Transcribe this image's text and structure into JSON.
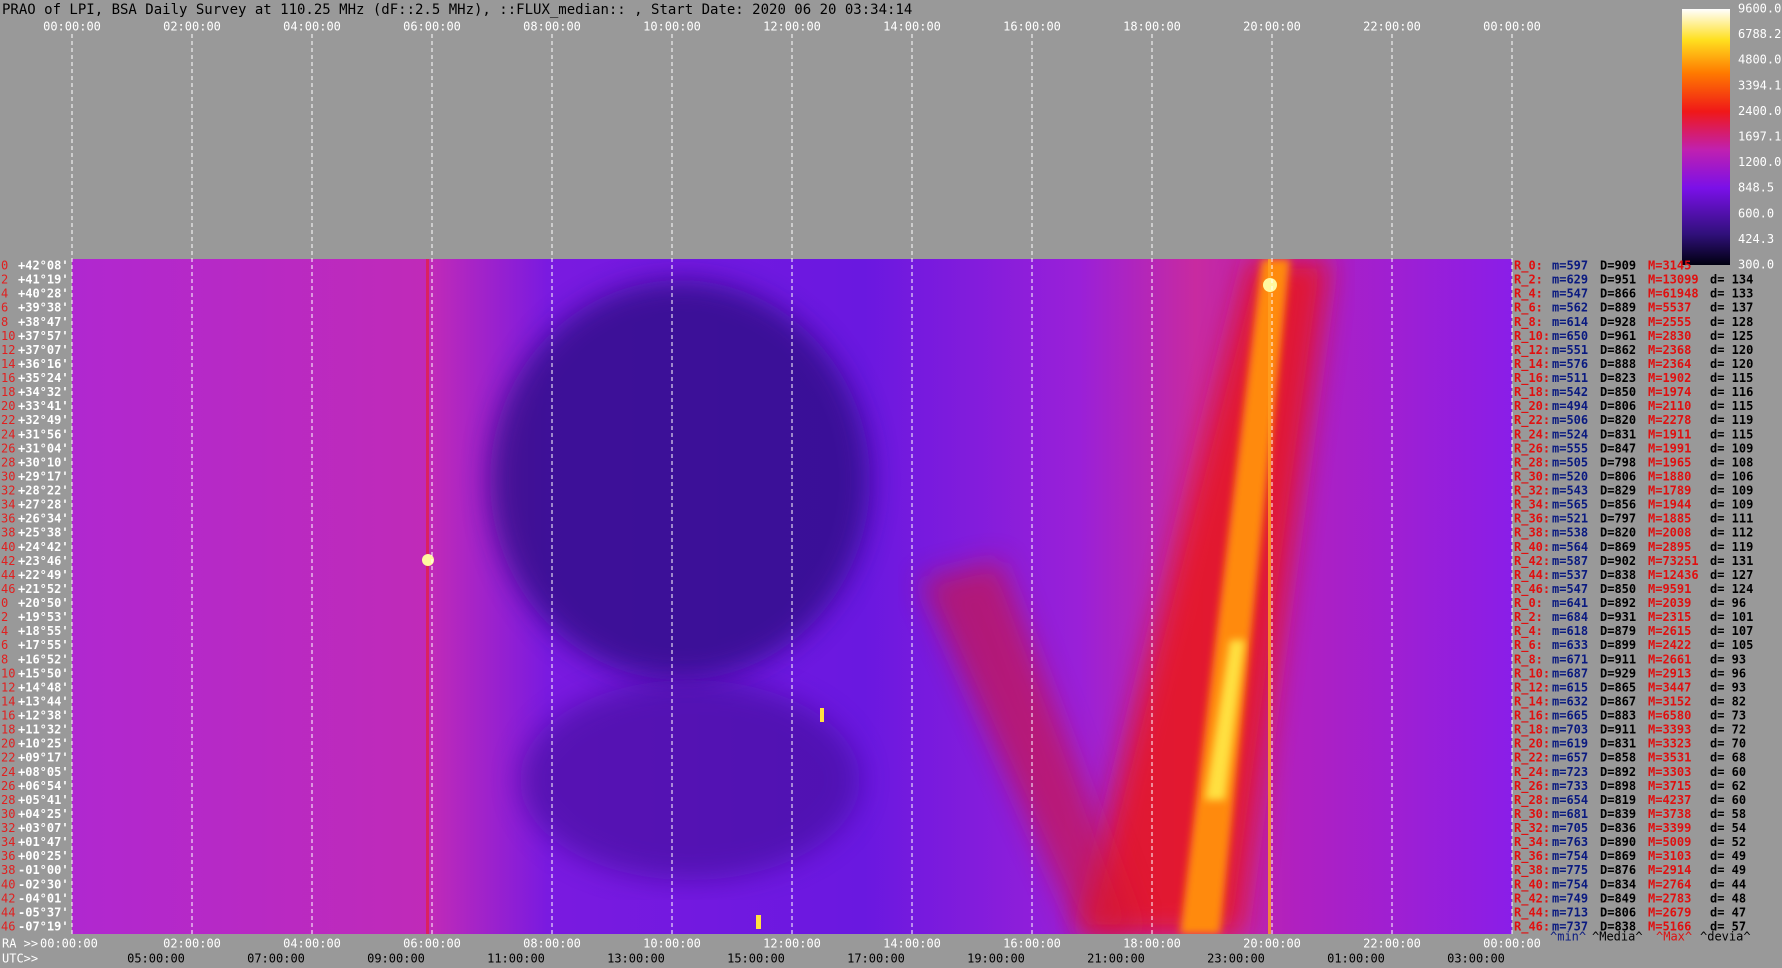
{
  "title": "PRAO of LPI, BSA Daily Survey at 110.25 MHz (dF::2.5 MHz), ::FLUX_median:: , Start Date: 2020 06 20 03:34:14",
  "top_axis": [
    "00:00:00",
    "02:00:00",
    "04:00:00",
    "06:00:00",
    "08:00:00",
    "10:00:00",
    "12:00:00",
    "14:00:00",
    "16:00:00",
    "18:00:00",
    "20:00:00",
    "22:00:00",
    "00:00:00"
  ],
  "ra_prefix": "RA >>",
  "bottom_ra": [
    "00:00:00",
    "02:00:00",
    "04:00:00",
    "06:00:00",
    "08:00:00",
    "10:00:00",
    "12:00:00",
    "14:00:00",
    "16:00:00",
    "18:00:00",
    "20:00:00",
    "22:00:00",
    "00:00:00"
  ],
  "utc_prefix": "UTC>>",
  "bottom_utc": [
    "05:00:00",
    "07:00:00",
    "09:00:00",
    "11:00:00",
    "13:00:00",
    "15:00:00",
    "17:00:00",
    "19:00:00",
    "21:00:00",
    "23:00:00",
    "01:00:00",
    "03:00:00"
  ],
  "colorbar": [
    "9600.0",
    "6788.2",
    "4800.0",
    "3394.1",
    "2400.0",
    "1697.1",
    "1200.0",
    "848.5",
    "600.0",
    "424.3",
    "300.0"
  ],
  "rows": [
    {
      "id": "0",
      "dec": "+42°08'"
    },
    {
      "id": "2",
      "dec": "+41°19'"
    },
    {
      "id": "4",
      "dec": "+40°28'"
    },
    {
      "id": "6",
      "dec": "+39°38'"
    },
    {
      "id": "8",
      "dec": "+38°47'"
    },
    {
      "id": "10",
      "dec": "+37°57'"
    },
    {
      "id": "12",
      "dec": "+37°07'"
    },
    {
      "id": "14",
      "dec": "+36°16'"
    },
    {
      "id": "16",
      "dec": "+35°24'"
    },
    {
      "id": "18",
      "dec": "+34°32'"
    },
    {
      "id": "20",
      "dec": "+33°41'"
    },
    {
      "id": "22",
      "dec": "+32°49'"
    },
    {
      "id": "24",
      "dec": "+31°56'"
    },
    {
      "id": "26",
      "dec": "+31°04'"
    },
    {
      "id": "28",
      "dec": "+30°10'"
    },
    {
      "id": "30",
      "dec": "+29°17'"
    },
    {
      "id": "32",
      "dec": "+28°22'"
    },
    {
      "id": "34",
      "dec": "+27°28'"
    },
    {
      "id": "36",
      "dec": "+26°34'"
    },
    {
      "id": "38",
      "dec": "+25°38'"
    },
    {
      "id": "40",
      "dec": "+24°42'"
    },
    {
      "id": "42",
      "dec": "+23°46'"
    },
    {
      "id": "44",
      "dec": "+22°49'"
    },
    {
      "id": "46",
      "dec": "+21°52'"
    },
    {
      "id": "0",
      "dec": "+20°50'"
    },
    {
      "id": "2",
      "dec": "+19°53'"
    },
    {
      "id": "4",
      "dec": "+18°55'"
    },
    {
      "id": "6",
      "dec": "+17°55'"
    },
    {
      "id": "8",
      "dec": "+16°52'"
    },
    {
      "id": "10",
      "dec": "+15°50'"
    },
    {
      "id": "12",
      "dec": "+14°48'"
    },
    {
      "id": "14",
      "dec": "+13°44'"
    },
    {
      "id": "16",
      "dec": "+12°38'"
    },
    {
      "id": "18",
      "dec": "+11°32'"
    },
    {
      "id": "20",
      "dec": "+10°25'"
    },
    {
      "id": "22",
      "dec": "+09°17'"
    },
    {
      "id": "24",
      "dec": "+08°05'"
    },
    {
      "id": "26",
      "dec": "+06°54'"
    },
    {
      "id": "28",
      "dec": "+05°41'"
    },
    {
      "id": "30",
      "dec": "+04°25'"
    },
    {
      "id": "32",
      "dec": "+03°07'"
    },
    {
      "id": "34",
      "dec": "+01°47'"
    },
    {
      "id": "36",
      "dec": "+00°25'"
    },
    {
      "id": "38",
      "dec": "-01°00'"
    },
    {
      "id": "40",
      "dec": "-02°30'"
    },
    {
      "id": "42",
      "dec": "-04°01'"
    },
    {
      "id": "44",
      "dec": "-05°37'"
    },
    {
      "id": "46",
      "dec": "-07°19'"
    }
  ],
  "stats": [
    {
      "label": "R_0:",
      "m": "m=597",
      "D": "D=909",
      "M": "M=3145"
    },
    {
      "label": "R_2:",
      "m": "m=629",
      "D": "D=951",
      "M": "M=13099",
      "d": "d= 134"
    },
    {
      "label": "R_4:",
      "m": "m=547",
      "D": "D=866",
      "M": "M=61948",
      "d": "d= 133"
    },
    {
      "label": "R_6:",
      "m": "m=562",
      "D": "D=889",
      "M": "M=5537",
      "d": "d= 137"
    },
    {
      "label": "R_8:",
      "m": "m=614",
      "D": "D=928",
      "M": "M=2555",
      "d": "d= 128"
    },
    {
      "label": "R_10:",
      "m": "m=650",
      "D": "D=961",
      "M": "M=2830",
      "d": "d= 125"
    },
    {
      "label": "R_12:",
      "m": "m=551",
      "D": "D=862",
      "M": "M=2368",
      "d": "d= 120"
    },
    {
      "label": "R_14:",
      "m": "m=576",
      "D": "D=888",
      "M": "M=2364",
      "d": "d= 120"
    },
    {
      "label": "R_16:",
      "m": "m=511",
      "D": "D=823",
      "M": "M=1902",
      "d": "d= 115"
    },
    {
      "label": "R_18:",
      "m": "m=542",
      "D": "D=850",
      "M": "M=1974",
      "d": "d= 116"
    },
    {
      "label": "R_20:",
      "m": "m=494",
      "D": "D=806",
      "M": "M=2110",
      "d": "d= 115"
    },
    {
      "label": "R_22:",
      "m": "m=506",
      "D": "D=820",
      "M": "M=2278",
      "d": "d= 119"
    },
    {
      "label": "R_24:",
      "m": "m=524",
      "D": "D=831",
      "M": "M=1911",
      "d": "d= 115"
    },
    {
      "label": "R_26:",
      "m": "m=555",
      "D": "D=847",
      "M": "M=1991",
      "d": "d= 109"
    },
    {
      "label": "R_28:",
      "m": "m=505",
      "D": "D=798",
      "M": "M=1965",
      "d": "d= 108"
    },
    {
      "label": "R_30:",
      "m": "m=520",
      "D": "D=806",
      "M": "M=1880",
      "d": "d= 106"
    },
    {
      "label": "R_32:",
      "m": "m=543",
      "D": "D=829",
      "M": "M=1789",
      "d": "d= 109"
    },
    {
      "label": "R_34:",
      "m": "m=565",
      "D": "D=856",
      "M": "M=1944",
      "d": "d= 109"
    },
    {
      "label": "R_36:",
      "m": "m=521",
      "D": "D=797",
      "M": "M=1885",
      "d": "d= 111"
    },
    {
      "label": "R_38:",
      "m": "m=538",
      "D": "D=820",
      "M": "M=2008",
      "d": "d= 112"
    },
    {
      "label": "R_40:",
      "m": "m=564",
      "D": "D=869",
      "M": "M=2895",
      "d": "d= 119"
    },
    {
      "label": "R_42:",
      "m": "m=587",
      "D": "D=902",
      "M": "M=73251",
      "d": "d= 131"
    },
    {
      "label": "R_44:",
      "m": "m=537",
      "D": "D=838",
      "M": "M=12436",
      "d": "d= 127"
    },
    {
      "label": "R_46:",
      "m": "m=547",
      "D": "D=850",
      "M": "M=9591",
      "d": "d= 124"
    },
    {
      "label": "R_0:",
      "m": "m=641",
      "D": "D=892",
      "M": "M=2039",
      "d": "d= 96"
    },
    {
      "label": "R_2:",
      "m": "m=684",
      "D": "D=931",
      "M": "M=2315",
      "d": "d= 101"
    },
    {
      "label": "R_4:",
      "m": "m=618",
      "D": "D=879",
      "M": "M=2615",
      "d": "d= 107"
    },
    {
      "label": "R_6:",
      "m": "m=633",
      "D": "D=899",
      "M": "M=2422",
      "d": "d= 105"
    },
    {
      "label": "R_8:",
      "m": "m=671",
      "D": "D=911",
      "M": "M=2661",
      "d": "d= 93"
    },
    {
      "label": "R_10:",
      "m": "m=687",
      "D": "D=929",
      "M": "M=2913",
      "d": "d= 96"
    },
    {
      "label": "R_12:",
      "m": "m=615",
      "D": "D=865",
      "M": "M=3447",
      "d": "d= 93"
    },
    {
      "label": "R_14:",
      "m": "m=632",
      "D": "D=867",
      "M": "M=3152",
      "d": "d= 82"
    },
    {
      "label": "R_16:",
      "m": "m=665",
      "D": "D=883",
      "M": "M=6580",
      "d": "d= 73"
    },
    {
      "label": "R_18:",
      "m": "m=703",
      "D": "D=911",
      "M": "M=3393",
      "d": "d= 72"
    },
    {
      "label": "R_20:",
      "m": "m=619",
      "D": "D=831",
      "M": "M=3323",
      "d": "d= 70"
    },
    {
      "label": "R_22:",
      "m": "m=657",
      "D": "D=858",
      "M": "M=3531",
      "d": "d= 68"
    },
    {
      "label": "R_24:",
      "m": "m=723",
      "D": "D=892",
      "M": "M=3303",
      "d": "d= 60"
    },
    {
      "label": "R_26:",
      "m": "m=733",
      "D": "D=898",
      "M": "M=3715",
      "d": "d= 62"
    },
    {
      "label": "R_28:",
      "m": "m=654",
      "D": "D=819",
      "M": "M=4237",
      "d": "d= 60"
    },
    {
      "label": "R_30:",
      "m": "m=681",
      "D": "D=839",
      "M": "M=3738",
      "d": "d= 58"
    },
    {
      "label": "R_32:",
      "m": "m=705",
      "D": "D=836",
      "M": "M=3399",
      "d": "d= 54"
    },
    {
      "label": "R_34:",
      "m": "m=763",
      "D": "D=890",
      "M": "M=5009",
      "d": "d= 52"
    },
    {
      "label": "R_36:",
      "m": "m=754",
      "D": "D=869",
      "M": "M=3103",
      "d": "d= 49"
    },
    {
      "label": "R_38:",
      "m": "m=775",
      "D": "D=876",
      "M": "M=2914",
      "d": "d= 49"
    },
    {
      "label": "R_40:",
      "m": "m=754",
      "D": "D=834",
      "M": "M=2764",
      "d": "d= 44"
    },
    {
      "label": "R_42:",
      "m": "m=749",
      "D": "D=849",
      "M": "M=2783",
      "d": "d= 48"
    },
    {
      "label": "R_44:",
      "m": "m=713",
      "D": "D=806",
      "M": "M=2679",
      "d": "d= 47"
    },
    {
      "label": "R_46:",
      "m": "m=737",
      "D": "D=838",
      "M": "M=5166",
      "d": "d= 57"
    }
  ],
  "stats_footer": [
    "^min^",
    "^Media^",
    "^Max^",
    "^devia^"
  ]
}
